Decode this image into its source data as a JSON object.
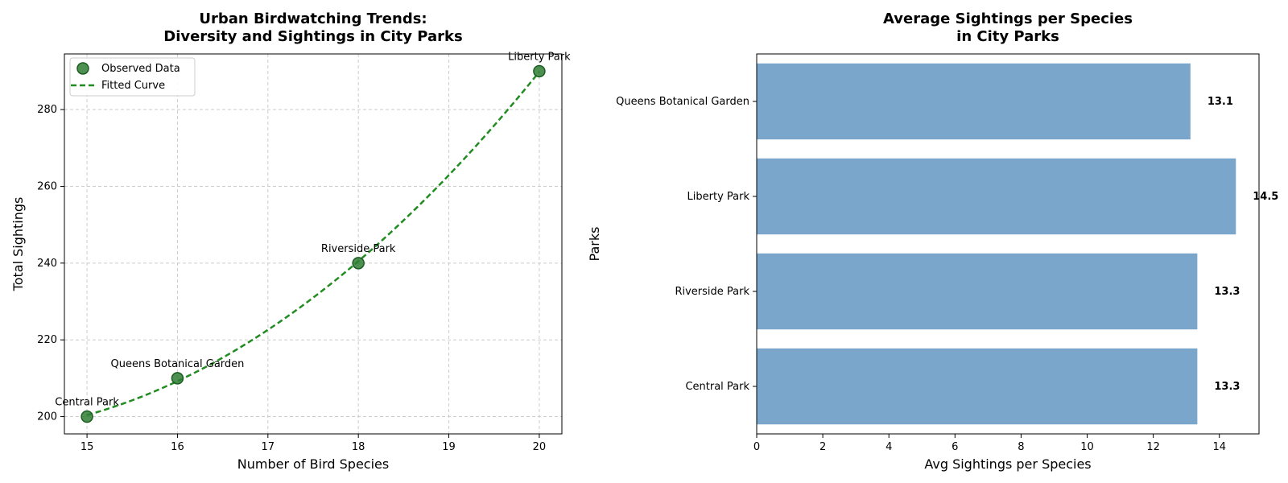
{
  "chart_data": [
    {
      "type": "scatter",
      "title": "Urban Birdwatching Trends:\nDiversity and Sightings in City Parks",
      "xlabel": "Number of Bird Species",
      "ylabel": "Total Sightings",
      "xlim": [
        14.75,
        20.25
      ],
      "ylim": [
        195.5,
        294.5
      ],
      "xticks": [
        15,
        16,
        17,
        18,
        19,
        20
      ],
      "yticks": [
        200,
        220,
        240,
        260,
        280
      ],
      "grid": true,
      "legend_position": "top-left",
      "legend": [
        "Observed Data",
        "Fitted Curve"
      ],
      "colors": {
        "points": "#2e7d32",
        "curve": "#228b22"
      },
      "points": [
        {
          "label": "Central Park",
          "x": 15,
          "y": 200
        },
        {
          "label": "Queens Botanical Garden",
          "x": 16,
          "y": 210
        },
        {
          "label": "Riverside Park",
          "x": 18,
          "y": 240
        },
        {
          "label": "Liberty Park",
          "x": 20,
          "y": 290
        }
      ],
      "fit": {
        "kind": "quadratic",
        "x_range": [
          15,
          20
        ],
        "reference_points": [
          [
            15,
            200
          ],
          [
            16,
            210
          ],
          [
            18,
            240
          ],
          [
            20,
            290
          ]
        ]
      }
    },
    {
      "type": "bar",
      "orientation": "horizontal",
      "title": "Average Sightings per Species\nin City Parks",
      "xlabel": "Avg Sightings per Species",
      "ylabel": "Parks",
      "xlim": [
        0,
        15.2
      ],
      "xticks": [
        0,
        2,
        4,
        6,
        8,
        10,
        12,
        14
      ],
      "grid": false,
      "colors": {
        "bars": "#7ba6cb"
      },
      "categories": [
        "Central Park",
        "Riverside Park",
        "Liberty Park",
        "Queens Botanical Garden"
      ],
      "values": [
        13.3333,
        13.3333,
        14.5,
        13.125
      ],
      "value_labels": [
        "13.3",
        "13.3",
        "14.5",
        "13.1"
      ]
    }
  ]
}
